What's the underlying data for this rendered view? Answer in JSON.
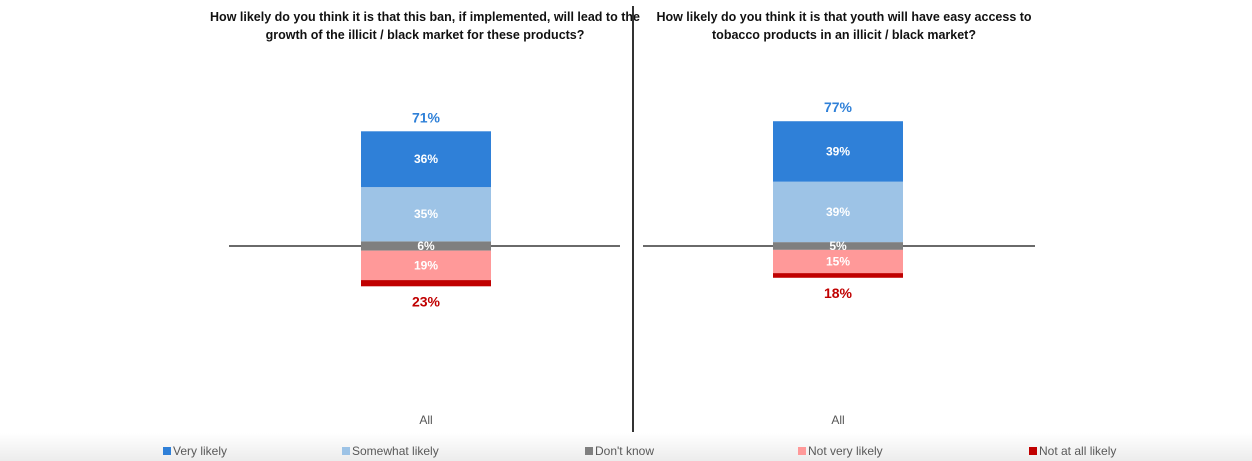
{
  "colors": {
    "very_likely": "#2f80d8",
    "somewhat_likely": "#9dc3e6",
    "dont_know": "#7f7f7f",
    "not_very_likely": "#ff9999",
    "not_at_all_likely": "#c00000"
  },
  "legend": {
    "items": [
      {
        "label": "Very likely",
        "color": "#2f80d8"
      },
      {
        "label": "Somewhat likely",
        "color": "#9dc3e6"
      },
      {
        "label": "Don't know",
        "color": "#7f7f7f"
      },
      {
        "label": "Not very likely",
        "color": "#ff9999"
      },
      {
        "label": "Not at all likely",
        "color": "#c00000"
      }
    ]
  },
  "chart_data": [
    {
      "type": "bar",
      "stacked": "diverging",
      "title": "How likely do you think it is that this ban, if implemented, will lead to the growth of the illicit / black market for these products?",
      "categories": [
        "All"
      ],
      "series": [
        {
          "name": "Very likely",
          "values": [
            36
          ],
          "label": "36%"
        },
        {
          "name": "Somewhat likely",
          "values": [
            35
          ],
          "label": "35%"
        },
        {
          "name": "Don't know",
          "values": [
            6
          ],
          "label": "6%"
        },
        {
          "name": "Not very likely",
          "values": [
            19
          ],
          "label": "19%"
        },
        {
          "name": "Not at all likely",
          "values": [
            4
          ],
          "label": ""
        }
      ],
      "total_likely": "71%",
      "total_not_likely": "23%",
      "legend": "bottom"
    },
    {
      "type": "bar",
      "stacked": "diverging",
      "title": "How likely do you think it is that youth will have easy access to tobacco products in an illicit / black market?",
      "categories": [
        "All"
      ],
      "series": [
        {
          "name": "Very likely",
          "values": [
            39
          ],
          "label": "39%"
        },
        {
          "name": "Somewhat likely",
          "values": [
            39
          ],
          "label": "39%"
        },
        {
          "name": "Don't know",
          "values": [
            5
          ],
          "label": "5%"
        },
        {
          "name": "Not very likely",
          "values": [
            15
          ],
          "label": "15%"
        },
        {
          "name": "Not at all likely",
          "values": [
            3
          ],
          "label": ""
        }
      ],
      "total_likely": "77%",
      "total_not_likely": "18%",
      "legend": "bottom"
    }
  ]
}
